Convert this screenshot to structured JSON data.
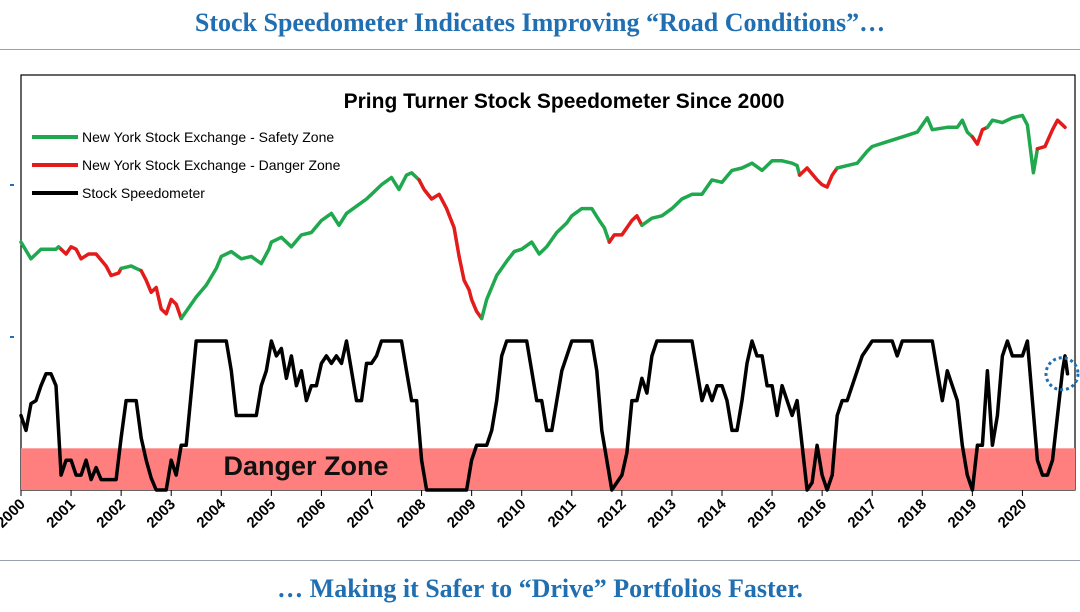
{
  "header": {
    "title": "Stock Speedometer Indicates Improving “Road Conditions”…"
  },
  "footer": {
    "caption": "… Making it Safer to “Drive” Portfolios Faster."
  },
  "colors": {
    "accent": "#1f6fb2",
    "safety": "#1fa84d",
    "danger": "#e31b1b",
    "speedometer": "#000000",
    "danger_band": "#ff7f7f",
    "marker": "#1f6fb2"
  },
  "chart_data": {
    "type": "line",
    "title": "Pring Turner Stock Speedometer Since 2000",
    "annotation": "Danger Zone",
    "danger_band_ylim": [
      0,
      0.28
    ],
    "legend": [
      {
        "label": "New York Stock Exchange - Safety Zone",
        "color": "#1fa84d"
      },
      {
        "label": "New York Stock Exchange - Danger Zone",
        "color": "#e31b1b"
      },
      {
        "label": "Stock Speedometer",
        "color": "#000000"
      }
    ],
    "legend_position": "top-left",
    "x_tick_labels": [
      "2000",
      "2001",
      "2002",
      "2003",
      "2004",
      "2005",
      "2006",
      "2007",
      "2008",
      "2009",
      "2010",
      "2011",
      "2012",
      "2013",
      "2014",
      "2015",
      "2016",
      "2017",
      "2018",
      "2019",
      "2020"
    ],
    "xlim": [
      2000,
      2021.05
    ],
    "nyse_ylim": [
      0,
      1
    ],
    "nyse": [
      [
        2000.0,
        0.46,
        "s"
      ],
      [
        2000.2,
        0.39,
        "s"
      ],
      [
        2000.4,
        0.43,
        "s"
      ],
      [
        2000.7,
        0.43,
        "s"
      ],
      [
        2000.75,
        0.44,
        "s"
      ],
      [
        2000.8,
        0.43,
        "d"
      ],
      [
        2000.9,
        0.41,
        "d"
      ],
      [
        2001.0,
        0.44,
        "d"
      ],
      [
        2001.1,
        0.43,
        "d"
      ],
      [
        2001.2,
        0.39,
        "d"
      ],
      [
        2001.35,
        0.41,
        "d"
      ],
      [
        2001.5,
        0.41,
        "d"
      ],
      [
        2001.7,
        0.36,
        "d"
      ],
      [
        2001.8,
        0.32,
        "d"
      ],
      [
        2001.95,
        0.33,
        "d"
      ],
      [
        2002.0,
        0.35,
        "s"
      ],
      [
        2002.2,
        0.36,
        "s"
      ],
      [
        2002.3,
        0.35,
        "s"
      ],
      [
        2002.4,
        0.34,
        "d"
      ],
      [
        2002.5,
        0.3,
        "d"
      ],
      [
        2002.6,
        0.25,
        "d"
      ],
      [
        2002.7,
        0.27,
        "d"
      ],
      [
        2002.8,
        0.18,
        "d"
      ],
      [
        2002.9,
        0.16,
        "d"
      ],
      [
        2003.0,
        0.22,
        "d"
      ],
      [
        2003.1,
        0.2,
        "d"
      ],
      [
        2003.2,
        0.14,
        "s"
      ],
      [
        2003.3,
        0.17,
        "s"
      ],
      [
        2003.5,
        0.23,
        "s"
      ],
      [
        2003.7,
        0.28,
        "s"
      ],
      [
        2003.9,
        0.35,
        "s"
      ],
      [
        2004.0,
        0.4,
        "s"
      ],
      [
        2004.2,
        0.42,
        "s"
      ],
      [
        2004.4,
        0.39,
        "s"
      ],
      [
        2004.6,
        0.4,
        "s"
      ],
      [
        2004.8,
        0.37,
        "s"
      ],
      [
        2004.95,
        0.43,
        "s"
      ],
      [
        2005.0,
        0.46,
        "s"
      ],
      [
        2005.2,
        0.48,
        "s"
      ],
      [
        2005.4,
        0.44,
        "s"
      ],
      [
        2005.6,
        0.49,
        "s"
      ],
      [
        2005.8,
        0.5,
        "s"
      ],
      [
        2006.0,
        0.55,
        "s"
      ],
      [
        2006.2,
        0.58,
        "s"
      ],
      [
        2006.35,
        0.53,
        "s"
      ],
      [
        2006.5,
        0.58,
        "s"
      ],
      [
        2006.7,
        0.61,
        "s"
      ],
      [
        2006.9,
        0.64,
        "s"
      ],
      [
        2007.0,
        0.66,
        "s"
      ],
      [
        2007.2,
        0.7,
        "s"
      ],
      [
        2007.4,
        0.73,
        "s"
      ],
      [
        2007.55,
        0.68,
        "s"
      ],
      [
        2007.7,
        0.74,
        "s"
      ],
      [
        2007.8,
        0.75,
        "s"
      ],
      [
        2007.95,
        0.72,
        "d"
      ],
      [
        2008.05,
        0.68,
        "d"
      ],
      [
        2008.2,
        0.64,
        "d"
      ],
      [
        2008.35,
        0.66,
        "d"
      ],
      [
        2008.5,
        0.6,
        "d"
      ],
      [
        2008.65,
        0.52,
        "d"
      ],
      [
        2008.75,
        0.4,
        "d"
      ],
      [
        2008.85,
        0.3,
        "d"
      ],
      [
        2008.95,
        0.26,
        "d"
      ],
      [
        2009.0,
        0.22,
        "d"
      ],
      [
        2009.1,
        0.17,
        "d"
      ],
      [
        2009.2,
        0.14,
        "s"
      ],
      [
        2009.3,
        0.22,
        "s"
      ],
      [
        2009.5,
        0.32,
        "s"
      ],
      [
        2009.7,
        0.38,
        "s"
      ],
      [
        2009.85,
        0.42,
        "s"
      ],
      [
        2010.0,
        0.43,
        "s"
      ],
      [
        2010.2,
        0.46,
        "s"
      ],
      [
        2010.35,
        0.41,
        "s"
      ],
      [
        2010.5,
        0.44,
        "s"
      ],
      [
        2010.7,
        0.5,
        "s"
      ],
      [
        2010.9,
        0.54,
        "s"
      ],
      [
        2011.0,
        0.57,
        "s"
      ],
      [
        2011.2,
        0.6,
        "s"
      ],
      [
        2011.4,
        0.6,
        "s"
      ],
      [
        2011.55,
        0.55,
        "s"
      ],
      [
        2011.65,
        0.52,
        "s"
      ],
      [
        2011.75,
        0.46,
        "d"
      ],
      [
        2011.85,
        0.49,
        "d"
      ],
      [
        2012.0,
        0.49,
        "d"
      ],
      [
        2012.2,
        0.55,
        "d"
      ],
      [
        2012.3,
        0.57,
        "d"
      ],
      [
        2012.4,
        0.53,
        "s"
      ],
      [
        2012.6,
        0.56,
        "s"
      ],
      [
        2012.8,
        0.57,
        "s"
      ],
      [
        2013.0,
        0.6,
        "s"
      ],
      [
        2013.2,
        0.64,
        "s"
      ],
      [
        2013.4,
        0.66,
        "s"
      ],
      [
        2013.6,
        0.66,
        "s"
      ],
      [
        2013.8,
        0.72,
        "s"
      ],
      [
        2014.0,
        0.71,
        "s"
      ],
      [
        2014.2,
        0.76,
        "s"
      ],
      [
        2014.4,
        0.77,
        "s"
      ],
      [
        2014.6,
        0.79,
        "s"
      ],
      [
        2014.8,
        0.76,
        "s"
      ],
      [
        2015.0,
        0.8,
        "s"
      ],
      [
        2015.2,
        0.8,
        "s"
      ],
      [
        2015.4,
        0.79,
        "s"
      ],
      [
        2015.5,
        0.78,
        "s"
      ],
      [
        2015.55,
        0.74,
        "d"
      ],
      [
        2015.7,
        0.77,
        "d"
      ],
      [
        2015.9,
        0.72,
        "d"
      ],
      [
        2016.0,
        0.7,
        "d"
      ],
      [
        2016.1,
        0.69,
        "d"
      ],
      [
        2016.2,
        0.74,
        "d"
      ],
      [
        2016.3,
        0.77,
        "s"
      ],
      [
        2016.5,
        0.78,
        "s"
      ],
      [
        2016.7,
        0.79,
        "s"
      ],
      [
        2016.9,
        0.84,
        "s"
      ],
      [
        2017.0,
        0.86,
        "s"
      ],
      [
        2017.3,
        0.88,
        "s"
      ],
      [
        2017.6,
        0.9,
        "s"
      ],
      [
        2017.9,
        0.92,
        "s"
      ],
      [
        2018.0,
        0.95,
        "s"
      ],
      [
        2018.1,
        0.98,
        "s"
      ],
      [
        2018.2,
        0.93,
        "s"
      ],
      [
        2018.5,
        0.94,
        "s"
      ],
      [
        2018.7,
        0.94,
        "s"
      ],
      [
        2018.8,
        0.97,
        "s"
      ],
      [
        2018.9,
        0.92,
        "s"
      ],
      [
        2019.0,
        0.9,
        "d"
      ],
      [
        2019.1,
        0.87,
        "d"
      ],
      [
        2019.2,
        0.93,
        "d"
      ],
      [
        2019.3,
        0.94,
        "s"
      ],
      [
        2019.4,
        0.97,
        "s"
      ],
      [
        2019.6,
        0.96,
        "s"
      ],
      [
        2019.8,
        0.98,
        "s"
      ],
      [
        2020.0,
        0.99,
        "s"
      ],
      [
        2020.1,
        0.95,
        "s"
      ],
      [
        2020.22,
        0.75,
        "s"
      ],
      [
        2020.3,
        0.85,
        "d"
      ],
      [
        2020.45,
        0.86,
        "d"
      ],
      [
        2020.6,
        0.93,
        "d"
      ],
      [
        2020.7,
        0.97,
        "d"
      ],
      [
        2020.85,
        0.94,
        "d"
      ]
    ],
    "speedometer_ylim": [
      0,
      1
    ],
    "speedometer": [
      [
        2000.0,
        0.5
      ],
      [
        2000.1,
        0.4
      ],
      [
        2000.2,
        0.58
      ],
      [
        2000.3,
        0.6
      ],
      [
        2000.4,
        0.7
      ],
      [
        2000.5,
        0.78
      ],
      [
        2000.6,
        0.78
      ],
      [
        2000.7,
        0.7
      ],
      [
        2000.8,
        0.1
      ],
      [
        2000.9,
        0.2
      ],
      [
        2001.0,
        0.2
      ],
      [
        2001.1,
        0.1
      ],
      [
        2001.2,
        0.1
      ],
      [
        2001.3,
        0.2
      ],
      [
        2001.4,
        0.07
      ],
      [
        2001.5,
        0.15
      ],
      [
        2001.6,
        0.07
      ],
      [
        2001.7,
        0.07
      ],
      [
        2001.8,
        0.07
      ],
      [
        2001.9,
        0.07
      ],
      [
        2002.0,
        0.35
      ],
      [
        2002.1,
        0.6
      ],
      [
        2002.2,
        0.6
      ],
      [
        2002.3,
        0.6
      ],
      [
        2002.4,
        0.35
      ],
      [
        2002.5,
        0.2
      ],
      [
        2002.6,
        0.08
      ],
      [
        2002.7,
        0.0
      ],
      [
        2002.8,
        0.0
      ],
      [
        2002.9,
        0.0
      ],
      [
        2003.0,
        0.2
      ],
      [
        2003.1,
        0.1
      ],
      [
        2003.2,
        0.3
      ],
      [
        2003.3,
        0.3
      ],
      [
        2003.4,
        0.65
      ],
      [
        2003.5,
        1.0
      ],
      [
        2003.7,
        1.0
      ],
      [
        2003.9,
        1.0
      ],
      [
        2004.0,
        1.0
      ],
      [
        2004.1,
        1.0
      ],
      [
        2004.2,
        0.8
      ],
      [
        2004.3,
        0.5
      ],
      [
        2004.5,
        0.5
      ],
      [
        2004.7,
        0.5
      ],
      [
        2004.8,
        0.7
      ],
      [
        2004.9,
        0.8
      ],
      [
        2005.0,
        1.0
      ],
      [
        2005.1,
        0.9
      ],
      [
        2005.2,
        0.95
      ],
      [
        2005.3,
        0.75
      ],
      [
        2005.4,
        0.9
      ],
      [
        2005.5,
        0.7
      ],
      [
        2005.6,
        0.8
      ],
      [
        2005.7,
        0.6
      ],
      [
        2005.8,
        0.7
      ],
      [
        2005.9,
        0.7
      ],
      [
        2006.0,
        0.85
      ],
      [
        2006.1,
        0.9
      ],
      [
        2006.2,
        0.85
      ],
      [
        2006.3,
        0.9
      ],
      [
        2006.4,
        0.85
      ],
      [
        2006.5,
        1.0
      ],
      [
        2006.6,
        0.8
      ],
      [
        2006.7,
        0.6
      ],
      [
        2006.8,
        0.6
      ],
      [
        2006.9,
        0.85
      ],
      [
        2007.0,
        0.85
      ],
      [
        2007.1,
        0.9
      ],
      [
        2007.2,
        1.0
      ],
      [
        2007.4,
        1.0
      ],
      [
        2007.6,
        1.0
      ],
      [
        2007.7,
        0.8
      ],
      [
        2007.8,
        0.6
      ],
      [
        2007.9,
        0.6
      ],
      [
        2008.0,
        0.2
      ],
      [
        2008.1,
        0.0
      ],
      [
        2008.4,
        0.0
      ],
      [
        2008.8,
        0.0
      ],
      [
        2008.9,
        0.0
      ],
      [
        2009.0,
        0.2
      ],
      [
        2009.1,
        0.3
      ],
      [
        2009.2,
        0.3
      ],
      [
        2009.3,
        0.3
      ],
      [
        2009.4,
        0.4
      ],
      [
        2009.5,
        0.6
      ],
      [
        2009.6,
        0.9
      ],
      [
        2009.7,
        1.0
      ],
      [
        2009.9,
        1.0
      ],
      [
        2010.0,
        1.0
      ],
      [
        2010.1,
        1.0
      ],
      [
        2010.2,
        0.8
      ],
      [
        2010.3,
        0.6
      ],
      [
        2010.4,
        0.6
      ],
      [
        2010.5,
        0.4
      ],
      [
        2010.6,
        0.4
      ],
      [
        2010.7,
        0.6
      ],
      [
        2010.8,
        0.8
      ],
      [
        2010.9,
        0.9
      ],
      [
        2011.0,
        1.0
      ],
      [
        2011.2,
        1.0
      ],
      [
        2011.4,
        1.0
      ],
      [
        2011.5,
        0.8
      ],
      [
        2011.6,
        0.4
      ],
      [
        2011.7,
        0.2
      ],
      [
        2011.8,
        0.0
      ],
      [
        2011.9,
        0.05
      ],
      [
        2012.0,
        0.1
      ],
      [
        2012.1,
        0.25
      ],
      [
        2012.2,
        0.6
      ],
      [
        2012.3,
        0.6
      ],
      [
        2012.4,
        0.75
      ],
      [
        2012.5,
        0.65
      ],
      [
        2012.6,
        0.9
      ],
      [
        2012.7,
        1.0
      ],
      [
        2012.9,
        1.0
      ],
      [
        2013.0,
        1.0
      ],
      [
        2013.2,
        1.0
      ],
      [
        2013.4,
        1.0
      ],
      [
        2013.5,
        0.8
      ],
      [
        2013.6,
        0.6
      ],
      [
        2013.7,
        0.7
      ],
      [
        2013.8,
        0.6
      ],
      [
        2013.9,
        0.7
      ],
      [
        2014.0,
        0.7
      ],
      [
        2014.1,
        0.6
      ],
      [
        2014.2,
        0.4
      ],
      [
        2014.3,
        0.4
      ],
      [
        2014.4,
        0.6
      ],
      [
        2014.5,
        0.85
      ],
      [
        2014.6,
        1.0
      ],
      [
        2014.7,
        0.9
      ],
      [
        2014.8,
        0.9
      ],
      [
        2014.9,
        0.7
      ],
      [
        2015.0,
        0.7
      ],
      [
        2015.1,
        0.5
      ],
      [
        2015.2,
        0.7
      ],
      [
        2015.3,
        0.6
      ],
      [
        2015.4,
        0.5
      ],
      [
        2015.5,
        0.6
      ],
      [
        2015.6,
        0.3
      ],
      [
        2015.7,
        0.0
      ],
      [
        2015.8,
        0.05
      ],
      [
        2015.9,
        0.3
      ],
      [
        2016.0,
        0.1
      ],
      [
        2016.1,
        0.0
      ],
      [
        2016.2,
        0.1
      ],
      [
        2016.3,
        0.5
      ],
      [
        2016.4,
        0.6
      ],
      [
        2016.5,
        0.6
      ],
      [
        2016.6,
        0.7
      ],
      [
        2016.7,
        0.8
      ],
      [
        2016.8,
        0.9
      ],
      [
        2016.9,
        0.95
      ],
      [
        2017.0,
        1.0
      ],
      [
        2017.2,
        1.0
      ],
      [
        2017.4,
        1.0
      ],
      [
        2017.5,
        0.9
      ],
      [
        2017.6,
        1.0
      ],
      [
        2017.8,
        1.0
      ],
      [
        2018.0,
        1.0
      ],
      [
        2018.2,
        1.0
      ],
      [
        2018.3,
        0.8
      ],
      [
        2018.4,
        0.6
      ],
      [
        2018.5,
        0.8
      ],
      [
        2018.6,
        0.7
      ],
      [
        2018.7,
        0.6
      ],
      [
        2018.8,
        0.3
      ],
      [
        2018.9,
        0.1
      ],
      [
        2019.0,
        0.0
      ],
      [
        2019.1,
        0.3
      ],
      [
        2019.2,
        0.3
      ],
      [
        2019.3,
        0.8
      ],
      [
        2019.4,
        0.3
      ],
      [
        2019.5,
        0.5
      ],
      [
        2019.6,
        0.9
      ],
      [
        2019.7,
        1.0
      ],
      [
        2019.8,
        0.9
      ],
      [
        2019.9,
        0.9
      ],
      [
        2020.0,
        0.9
      ],
      [
        2020.1,
        1.0
      ],
      [
        2020.2,
        0.6
      ],
      [
        2020.3,
        0.2
      ],
      [
        2020.4,
        0.1
      ],
      [
        2020.5,
        0.1
      ],
      [
        2020.6,
        0.2
      ],
      [
        2020.7,
        0.5
      ],
      [
        2020.8,
        0.8
      ],
      [
        2020.85,
        0.9
      ],
      [
        2020.9,
        0.78
      ]
    ],
    "marker_at": [
      2021.0,
      0.78
    ]
  }
}
